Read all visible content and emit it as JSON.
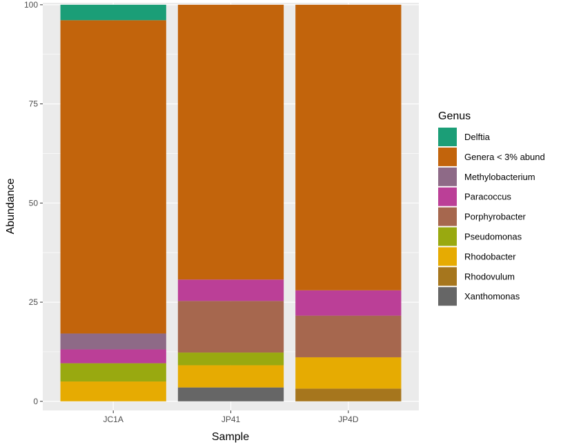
{
  "chart_data": {
    "type": "bar",
    "stacked": true,
    "xlabel": "Sample",
    "ylabel": "Abundance",
    "ylim": [
      -2.3,
      100.5
    ],
    "yticks": [
      0,
      25,
      50,
      75,
      100
    ],
    "categories": [
      "JC1A",
      "JP41",
      "JP4D"
    ],
    "legend": {
      "title": "Genus",
      "position": "right"
    },
    "grid": true,
    "series": [
      {
        "name": "Xanthomonas",
        "color": "#666666",
        "values": [
          0,
          3.5,
          0
        ]
      },
      {
        "name": "Rhodovulum",
        "color": "#A6761D",
        "values": [
          0,
          0,
          3.2
        ]
      },
      {
        "name": "Rhodobacter",
        "color": "#E6AB02",
        "values": [
          5.0,
          5.6,
          7.9
        ]
      },
      {
        "name": "Pseudomonas",
        "color": "#99A910",
        "values": [
          4.6,
          3.2,
          0
        ]
      },
      {
        "name": "Porphyrobacter",
        "color": "#A6674E",
        "values": [
          0,
          13.0,
          10.5
        ]
      },
      {
        "name": "Paracoccus",
        "color": "#BB3F97",
        "values": [
          3.5,
          5.4,
          6.4
        ]
      },
      {
        "name": "Methylobacterium",
        "color": "#8E6A87",
        "values": [
          4.0,
          0,
          0
        ]
      },
      {
        "name": "Genera < 3% abund",
        "color": "#C2640C",
        "values": [
          79.0,
          69.3,
          72.0
        ]
      },
      {
        "name": "Delftia",
        "color": "#1B9E77",
        "values": [
          3.9,
          0,
          0
        ]
      }
    ],
    "legend_order": [
      "Delftia",
      "Genera < 3% abund",
      "Methylobacterium",
      "Paracoccus",
      "Porphyrobacter",
      "Pseudomonas",
      "Rhodobacter",
      "Rhodovulum",
      "Xanthomonas"
    ]
  },
  "colors": {
    "panel_background": "#EBEBEB",
    "grid_major": "#FFFFFF",
    "tick_text": "#4D4D4D"
  }
}
